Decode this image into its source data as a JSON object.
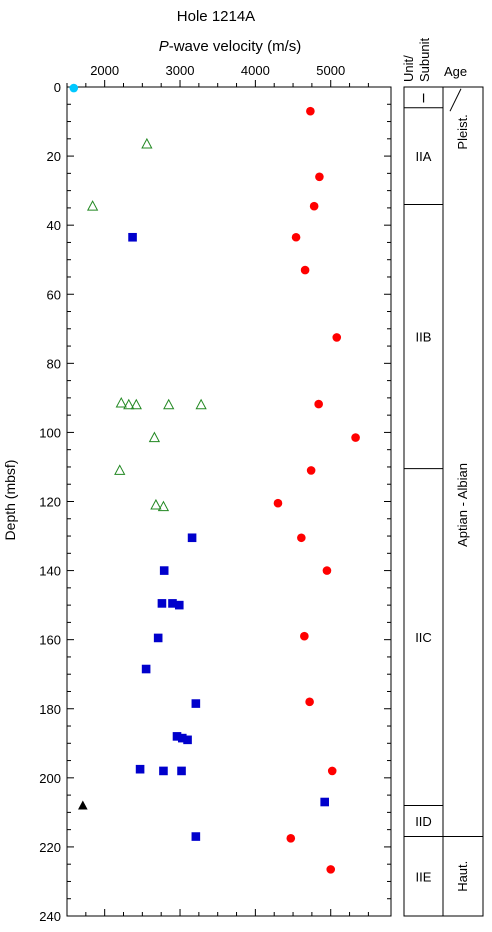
{
  "chart_data": {
    "type": "scatter",
    "title": "Hole 1214A",
    "xlabel_italic": "P",
    "xlabel_rest": "-wave velocity (m/s)",
    "ylabel": "Depth (mbsf)",
    "xlim": [
      1500,
      5800
    ],
    "ylim": [
      0,
      240
    ],
    "x_ticks": [
      "2000",
      "3000",
      "4000",
      "5000"
    ],
    "y_ticks": [
      "0",
      "20",
      "40",
      "60",
      "80",
      "100",
      "120",
      "140",
      "160",
      "180",
      "200",
      "220",
      "240"
    ],
    "series": [
      {
        "marker": "circle-filled",
        "color": "#ff0000",
        "points": [
          [
            4730,
            7
          ],
          [
            4850,
            26
          ],
          [
            4780,
            34.5
          ],
          [
            4540,
            43.5
          ],
          [
            4660,
            53
          ],
          [
            5080,
            72.5
          ],
          [
            4840,
            91.8
          ],
          [
            5330,
            101.5
          ],
          [
            4740,
            111
          ],
          [
            4300,
            120.5
          ],
          [
            4610,
            130.5
          ],
          [
            4950,
            140
          ],
          [
            4650,
            159
          ],
          [
            4720,
            178
          ],
          [
            5020,
            198
          ],
          [
            4470,
            217.5
          ],
          [
            5000,
            226.5
          ]
        ]
      },
      {
        "marker": "triangle-open",
        "color": "#228822",
        "points": [
          [
            2560,
            16.5
          ],
          [
            1840,
            34.5
          ],
          [
            2220,
            91.5
          ],
          [
            2320,
            92
          ],
          [
            2420,
            92
          ],
          [
            2850,
            92
          ],
          [
            3280,
            92
          ],
          [
            2660,
            101.5
          ],
          [
            2200,
            111
          ],
          [
            2680,
            121
          ],
          [
            2780,
            121.5
          ]
        ]
      },
      {
        "marker": "square-filled",
        "color": "#0000cc",
        "points": [
          [
            2370,
            43.5
          ],
          [
            3160,
            130.5
          ],
          [
            2790,
            140
          ],
          [
            2760,
            149.5
          ],
          [
            2900,
            149.5
          ],
          [
            2990,
            150
          ],
          [
            2710,
            159.5
          ],
          [
            2550,
            168.5
          ],
          [
            3210,
            178.5
          ],
          [
            2960,
            188
          ],
          [
            3030,
            188.5
          ],
          [
            3100,
            189
          ],
          [
            2470,
            197.5
          ],
          [
            2780,
            198
          ],
          [
            3020,
            198
          ],
          [
            4920,
            207
          ],
          [
            3210,
            217
          ]
        ]
      },
      {
        "marker": "triangle-filled",
        "color": "#000000",
        "points": [
          [
            1710,
            208
          ]
        ]
      },
      {
        "marker": "circle-filled",
        "color": "#00c8ff",
        "points": [
          [
            1590,
            0.3
          ]
        ]
      }
    ],
    "strat_columns": {
      "unit_header": "Unit/\nSubunit",
      "age_header": "Age"
    },
    "units": [
      {
        "label": "I",
        "top": 0,
        "bottom": 6
      },
      {
        "label": "IIA",
        "top": 6,
        "bottom": 34
      },
      {
        "label": "IIB",
        "top": 34,
        "bottom": 110.5
      },
      {
        "label": "IIC",
        "top": 110.5,
        "bottom": 208
      },
      {
        "label": "IID",
        "top": 208,
        "bottom": 217
      },
      {
        "label": "IIE",
        "top": 217,
        "bottom": 240
      }
    ],
    "ages": [
      {
        "label": "Pleist.",
        "top": 0,
        "bottom": 25.5
      },
      {
        "label": "Aptian - Albian",
        "top": 25.5,
        "bottom": 217
      },
      {
        "label": "Haut.",
        "top": 217,
        "bottom": 240
      }
    ],
    "grid": false,
    "legend": "none"
  }
}
